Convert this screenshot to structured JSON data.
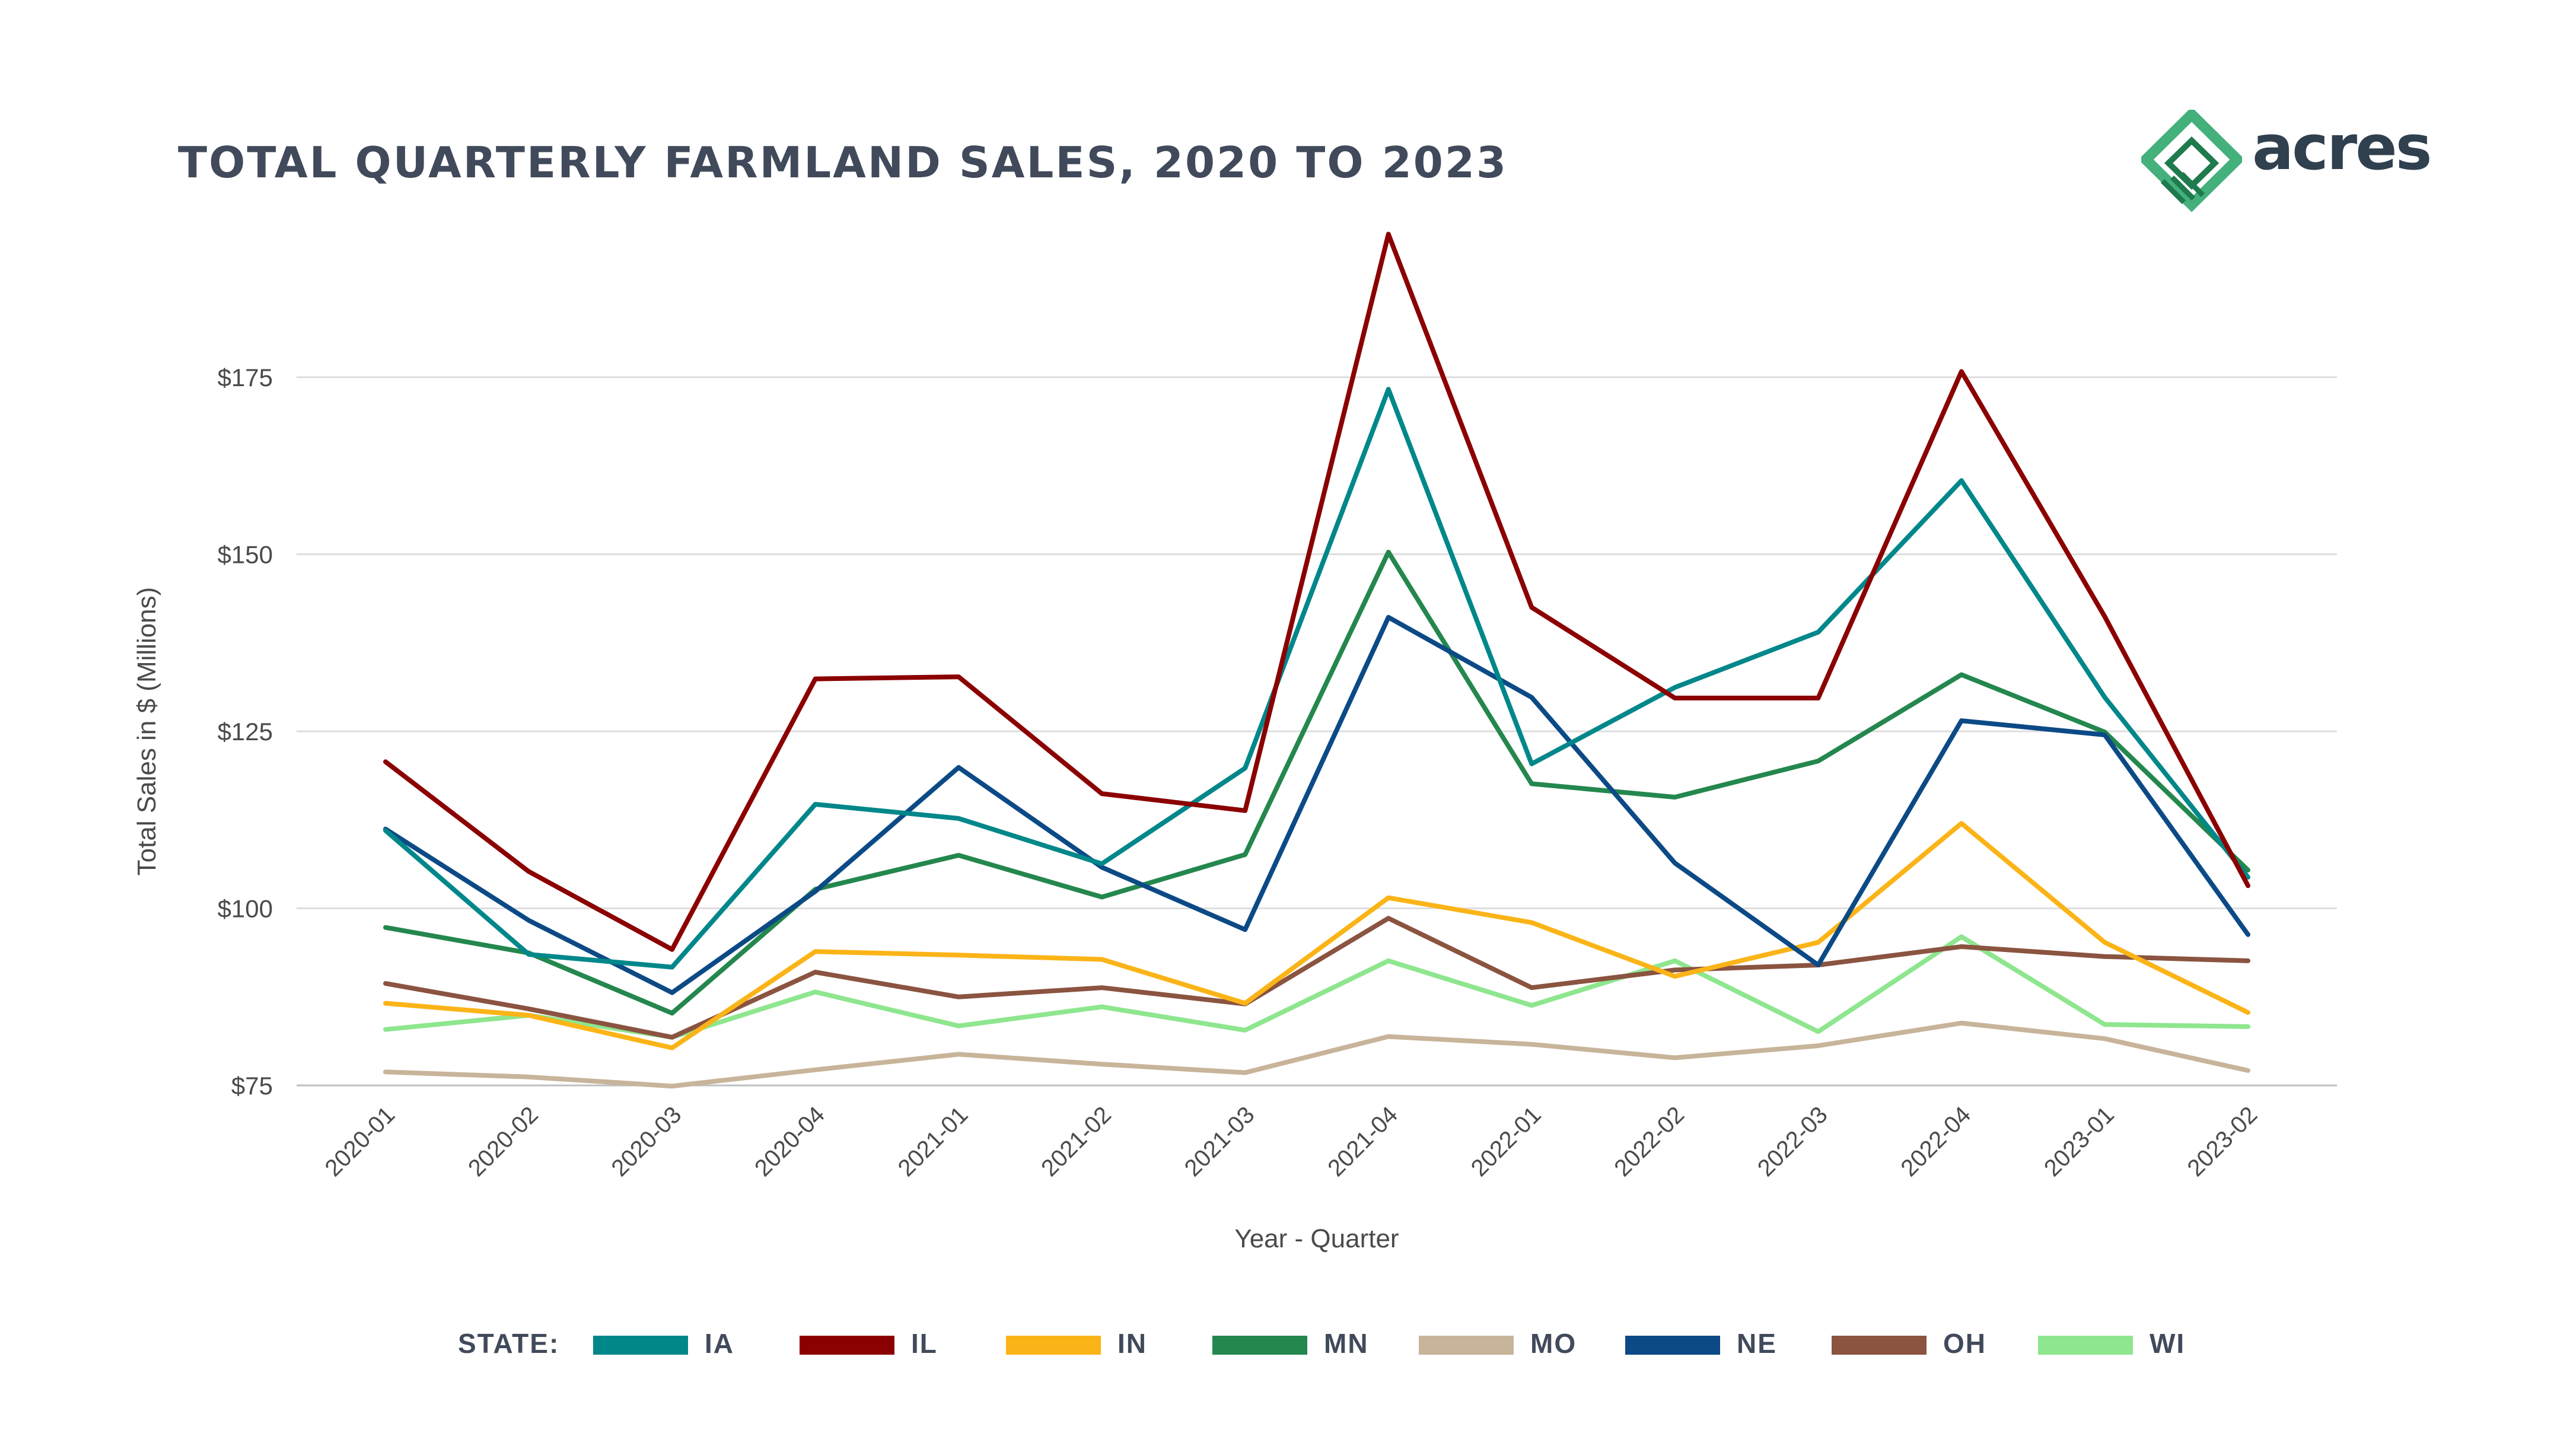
{
  "title": "TOTAL QUARTERLY FARMLAND SALES, 2020 TO 2023",
  "brand": {
    "name": "acres",
    "logo_icon": "acres-diamond-logo-icon",
    "colors": {
      "light": "#44b07b",
      "dark": "#1f7a4d"
    }
  },
  "legend": {
    "title": "STATE:"
  },
  "chart_data": {
    "type": "line",
    "xlabel": "Year - Quarter",
    "ylabel": "Total Sales in $ (Millions)",
    "ylim": [
      75,
      175
    ],
    "yticks": [
      75,
      100,
      125,
      150,
      175
    ],
    "ytick_labels": [
      "$75",
      "$100",
      "$125",
      "$150",
      "$175"
    ],
    "grid": true,
    "legend_position": "bottom",
    "categories": [
      "2020-01",
      "2020-02",
      "2020-03",
      "2020-04",
      "2021-01",
      "2021-02",
      "2021-03",
      "2021-04",
      "2022-01",
      "2022-02",
      "2022-03",
      "2022-04",
      "2023-01",
      "2023-02"
    ],
    "series": [
      {
        "name": "IA",
        "color": "#00878a",
        "values": [
          111,
          93.5,
          91.7,
          114.7,
          112.7,
          106.3,
          119.8,
          173.3,
          120.4,
          131.2,
          139,
          160.4,
          129.8,
          104.4
        ]
      },
      {
        "name": "IL",
        "color": "#8b0000",
        "values": [
          120.7,
          105.2,
          94.2,
          132.4,
          132.7,
          116.2,
          113.8,
          195.2,
          142.5,
          129.7,
          129.7,
          175.8,
          141.2,
          103.2
        ]
      },
      {
        "name": "IN",
        "color": "#fbb417",
        "values": [
          86.6,
          84.9,
          80.3,
          93.9,
          93.4,
          92.8,
          86.6,
          101.5,
          98,
          90.4,
          95.2,
          112,
          95.2,
          85.3
        ]
      },
      {
        "name": "MN",
        "color": "#24874e",
        "values": [
          97.3,
          93.7,
          85.2,
          102.7,
          107.5,
          101.6,
          107.6,
          150.3,
          117.6,
          115.7,
          120.8,
          133,
          124.9,
          105.4
        ]
      },
      {
        "name": "MO",
        "color": "#c8b49a",
        "values": [
          76.9,
          76.2,
          74.9,
          77.2,
          79.4,
          78,
          76.8,
          81.9,
          80.8,
          78.9,
          80.6,
          83.8,
          81.6,
          77.1
        ]
      },
      {
        "name": "NE",
        "color": "#0c4a86",
        "values": [
          111.2,
          98.3,
          88.1,
          102.4,
          119.9,
          105.8,
          97,
          141.1,
          129.8,
          106.4,
          92,
          126.5,
          124.5,
          96.3
        ]
      },
      {
        "name": "OH",
        "color": "#8a5440",
        "values": [
          89.4,
          85.8,
          81.8,
          91,
          87.5,
          88.8,
          86.5,
          98.6,
          88.8,
          91.3,
          92,
          94.6,
          93.2,
          92.6
        ]
      },
      {
        "name": "WI",
        "color": "#8ee68e",
        "values": [
          82.9,
          84.9,
          81.8,
          88.2,
          83.4,
          86.1,
          82.8,
          92.6,
          86.3,
          92.6,
          82.6,
          96,
          83.6,
          83.3
        ]
      }
    ]
  }
}
